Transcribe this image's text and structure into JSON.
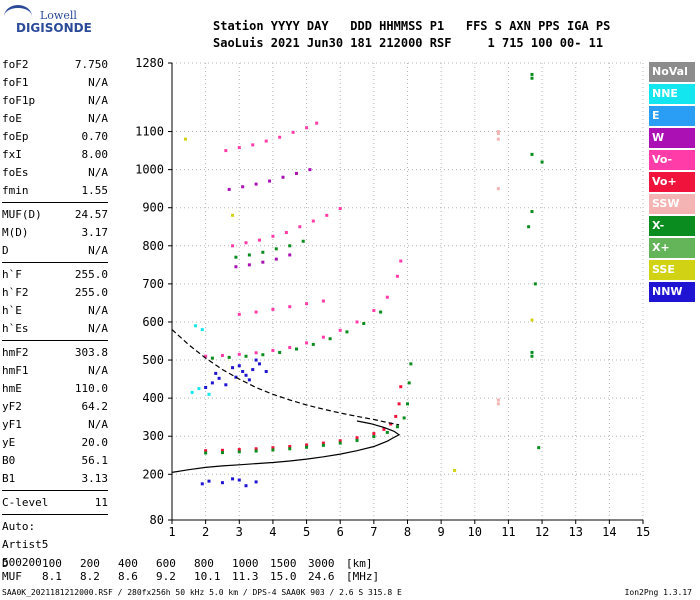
{
  "logo": {
    "line1": "Lowell",
    "line2": "DIGISONDE"
  },
  "header": {
    "line1": "Station YYYY DAY   DDD HHMMSS P1   FFS S AXN PPS IGA PS",
    "line2": "SaoLuis 2021 Jun30 181 212000 RSF     1 715 100 00- 11"
  },
  "params_groups": [
    [
      {
        "name": "foF2",
        "value": "7.750"
      },
      {
        "name": "foF1",
        "value": "N/A"
      },
      {
        "name": "foF1p",
        "value": "N/A"
      },
      {
        "name": "foE",
        "value": "N/A"
      },
      {
        "name": "foEp",
        "value": "0.70"
      },
      {
        "name": "fxI",
        "value": "8.00"
      },
      {
        "name": "foEs",
        "value": "N/A"
      },
      {
        "name": "fmin",
        "value": "1.55"
      }
    ],
    [
      {
        "name": "MUF(D)",
        "value": "24.57"
      },
      {
        "name": "M(D)",
        "value": "3.17"
      },
      {
        "name": "D",
        "value": "N/A"
      }
    ],
    [
      {
        "name": "h`F",
        "value": "255.0"
      },
      {
        "name": "h`F2",
        "value": "255.0"
      },
      {
        "name": "h`E",
        "value": "N/A"
      },
      {
        "name": "h`Es",
        "value": "N/A"
      }
    ],
    [
      {
        "name": "hmF2",
        "value": "303.8"
      },
      {
        "name": "hmF1",
        "value": "N/A"
      },
      {
        "name": "hmE",
        "value": "110.0"
      },
      {
        "name": "yF2",
        "value": "64.2"
      },
      {
        "name": "yF1",
        "value": "N/A"
      },
      {
        "name": "yE",
        "value": "20.0"
      },
      {
        "name": "B0",
        "value": "56.1"
      },
      {
        "name": "B1",
        "value": "3.13"
      }
    ],
    [
      {
        "name": "C-level",
        "value": "11"
      }
    ]
  ],
  "auto": {
    "line1": "Auto:",
    "line2": "Artist5",
    "line3": "500200"
  },
  "legend": [
    {
      "label": "NoVal",
      "color": "#8c8c8c"
    },
    {
      "label": "NNE",
      "color": "#14e6f0"
    },
    {
      "label": "E",
      "color": "#2a9df4"
    },
    {
      "label": "W",
      "color": "#aa10b4"
    },
    {
      "label": "Vo-",
      "color": "#ff3ca8"
    },
    {
      "label": "Vo+",
      "color": "#f0143c"
    },
    {
      "label": "SSW",
      "color": "#f4b4b4"
    },
    {
      "label": "X-",
      "color": "#0a8c1e"
    },
    {
      "label": "X+",
      "color": "#64b45a"
    },
    {
      "label": "SSE",
      "color": "#d2d214"
    },
    {
      "label": "NNW",
      "color": "#1e14d2"
    }
  ],
  "muf_table": {
    "d_label": "D",
    "d_values": [
      "100",
      "200",
      "400",
      "600",
      "800",
      "1000",
      "1500",
      "3000"
    ],
    "d_unit": "[km]",
    "muf_label": "MUF",
    "muf_values": [
      "8.1",
      "8.2",
      "8.6",
      "9.2",
      "10.1",
      "11.3",
      "15.0",
      "24.6"
    ],
    "muf_unit": "[MHz]"
  },
  "footer": {
    "left": "SAA0K_2021181212000.RSF / 280fx256h 50 kHz 5.0 km / DPS-4 SAA0K 903 / 2.6 S 315.8 E",
    "right": "Ion2Png 1.3.17"
  },
  "chart_data": {
    "type": "scatter",
    "xlim": [
      1,
      15
    ],
    "ylim": [
      80,
      1280
    ],
    "x_ticks": [
      1,
      2,
      3,
      4,
      5,
      6,
      7,
      8,
      9,
      10,
      11,
      12,
      13,
      14,
      15
    ],
    "y_ticks": [
      80,
      200,
      300,
      400,
      500,
      600,
      700,
      800,
      900,
      1000,
      1100,
      1280
    ],
    "grid": true,
    "series": [
      {
        "color": "#f0143c",
        "points": [
          [
            2.0,
            262
          ],
          [
            2.5,
            263
          ],
          [
            3.0,
            265
          ],
          [
            3.5,
            267
          ],
          [
            4.0,
            270
          ],
          [
            4.5,
            273
          ],
          [
            5.0,
            277
          ],
          [
            5.5,
            282
          ],
          [
            6.0,
            288
          ],
          [
            6.5,
            296
          ],
          [
            7.0,
            307
          ],
          [
            7.3,
            318
          ],
          [
            7.5,
            332
          ],
          [
            7.65,
            352
          ],
          [
            7.75,
            385
          ],
          [
            7.8,
            430
          ]
        ]
      },
      {
        "color": "#0a8c1e",
        "points": [
          [
            2.0,
            256
          ],
          [
            2.5,
            257
          ],
          [
            3.0,
            259
          ],
          [
            3.5,
            261
          ],
          [
            4.0,
            264
          ],
          [
            4.5,
            267
          ],
          [
            5.0,
            271
          ],
          [
            5.5,
            276
          ],
          [
            6.0,
            282
          ],
          [
            6.5,
            289
          ],
          [
            7.0,
            299
          ],
          [
            7.4,
            310
          ],
          [
            7.7,
            325
          ],
          [
            7.9,
            348
          ],
          [
            8.0,
            385
          ],
          [
            8.05,
            440
          ],
          [
            8.1,
            490
          ]
        ]
      },
      {
        "color": "#ff3ca8",
        "points": [
          [
            2.0,
            510
          ],
          [
            2.5,
            512
          ],
          [
            3.0,
            515
          ],
          [
            3.5,
            519
          ],
          [
            4.0,
            525
          ],
          [
            4.5,
            533
          ],
          [
            5.0,
            545
          ],
          [
            5.5,
            560
          ],
          [
            6.0,
            578
          ],
          [
            6.5,
            600
          ],
          [
            7.0,
            630
          ],
          [
            7.4,
            665
          ],
          [
            7.7,
            720
          ],
          [
            7.8,
            760
          ]
        ]
      },
      {
        "color": "#0a8c1e",
        "points": [
          [
            2.2,
            505
          ],
          [
            2.7,
            507
          ],
          [
            3.2,
            510
          ],
          [
            3.7,
            514
          ],
          [
            4.2,
            520
          ],
          [
            4.7,
            529
          ],
          [
            5.2,
            541
          ],
          [
            5.7,
            556
          ],
          [
            6.2,
            574
          ],
          [
            6.7,
            596
          ],
          [
            7.2,
            626
          ]
        ]
      },
      {
        "color": "#ff3ca8",
        "points": [
          [
            2.8,
            800
          ],
          [
            3.2,
            808
          ],
          [
            3.6,
            815
          ],
          [
            4.0,
            825
          ],
          [
            4.4,
            835
          ],
          [
            4.8,
            850
          ],
          [
            5.2,
            865
          ],
          [
            5.6,
            880
          ],
          [
            6.0,
            898
          ]
        ]
      },
      {
        "color": "#0a8c1e",
        "points": [
          [
            2.9,
            770
          ],
          [
            3.3,
            776
          ],
          [
            3.7,
            783
          ],
          [
            4.1,
            792
          ],
          [
            4.5,
            800
          ],
          [
            4.9,
            812
          ]
        ]
      },
      {
        "color": "#aa10b4",
        "points": [
          [
            2.9,
            745
          ],
          [
            3.3,
            750
          ],
          [
            3.7,
            757
          ],
          [
            4.1,
            765
          ],
          [
            4.5,
            776
          ]
        ]
      },
      {
        "color": "#ff3ca8",
        "points": [
          [
            2.6,
            1050
          ],
          [
            3.0,
            1058
          ],
          [
            3.4,
            1065
          ],
          [
            3.8,
            1075
          ],
          [
            4.2,
            1085
          ],
          [
            4.6,
            1098
          ],
          [
            5.0,
            1110
          ],
          [
            5.3,
            1122
          ]
        ]
      },
      {
        "color": "#ff3ca8",
        "points": [
          [
            3.0,
            620
          ],
          [
            3.5,
            626
          ],
          [
            4.0,
            633
          ],
          [
            4.5,
            640
          ],
          [
            5.0,
            648
          ],
          [
            5.5,
            655
          ]
        ]
      },
      {
        "color": "#aa10b4",
        "points": [
          [
            2.7,
            948
          ],
          [
            3.1,
            955
          ],
          [
            3.5,
            962
          ],
          [
            3.9,
            970
          ],
          [
            4.3,
            980
          ],
          [
            4.7,
            990
          ],
          [
            5.1,
            1000
          ]
        ]
      },
      {
        "color": "#1e14d2",
        "points": [
          [
            2.8,
            480
          ],
          [
            3.0,
            485
          ],
          [
            3.2,
            460
          ],
          [
            3.4,
            475
          ],
          [
            3.6,
            490
          ],
          [
            3.8,
            470
          ],
          [
            2.9,
            455
          ],
          [
            3.3,
            448
          ],
          [
            3.5,
            500
          ],
          [
            3.1,
            470
          ]
        ]
      },
      {
        "color": "#1e14d2",
        "points": [
          [
            2.0,
            428
          ],
          [
            2.2,
            440
          ],
          [
            2.4,
            452
          ],
          [
            2.6,
            435
          ],
          [
            2.3,
            465
          ]
        ]
      },
      {
        "color": "#1e14d2",
        "points": [
          [
            1.9,
            175
          ],
          [
            2.1,
            182
          ],
          [
            2.5,
            178
          ],
          [
            3.0,
            185
          ],
          [
            3.2,
            170
          ],
          [
            3.5,
            180
          ],
          [
            2.8,
            188
          ]
        ]
      },
      {
        "color": "#14e6f0",
        "points": [
          [
            1.7,
            590
          ],
          [
            1.9,
            580
          ],
          [
            1.8,
            425
          ],
          [
            2.1,
            410
          ],
          [
            1.6,
            415
          ]
        ]
      },
      {
        "color": "#f4b4b4",
        "points": [
          [
            10.7,
            1080
          ],
          [
            10.7,
            1095
          ],
          [
            10.7,
            1100
          ],
          [
            10.7,
            395
          ],
          [
            10.7,
            385
          ],
          [
            10.7,
            950
          ]
        ]
      },
      {
        "color": "#0a8c1e",
        "points": [
          [
            11.7,
            1250
          ],
          [
            11.7,
            1240
          ],
          [
            11.7,
            1040
          ],
          [
            11.7,
            520
          ],
          [
            11.7,
            510
          ],
          [
            11.7,
            890
          ],
          [
            11.8,
            700
          ],
          [
            11.6,
            850
          ],
          [
            12.0,
            1020
          ],
          [
            11.9,
            270
          ]
        ]
      },
      {
        "color": "#d2d214",
        "points": [
          [
            9.4,
            210
          ],
          [
            11.7,
            605
          ],
          [
            2.8,
            880
          ],
          [
            1.4,
            1080
          ]
        ]
      }
    ],
    "curves": [
      {
        "style": "solid",
        "points": [
          [
            1.0,
            205
          ],
          [
            1.5,
            212
          ],
          [
            2.0,
            218
          ],
          [
            2.5,
            222
          ],
          [
            3.0,
            225
          ],
          [
            3.5,
            228
          ],
          [
            4.0,
            231
          ],
          [
            4.5,
            235
          ],
          [
            5.0,
            240
          ],
          [
            5.5,
            246
          ],
          [
            6.0,
            253
          ],
          [
            6.5,
            262
          ],
          [
            7.0,
            273
          ],
          [
            7.4,
            287
          ],
          [
            7.6,
            297
          ],
          [
            7.75,
            303.8
          ],
          [
            7.6,
            313
          ],
          [
            7.3,
            323
          ],
          [
            6.9,
            333
          ],
          [
            6.5,
            340
          ]
        ]
      },
      {
        "style": "dashed",
        "points": [
          [
            1.0,
            580
          ],
          [
            1.5,
            540
          ],
          [
            2.0,
            505
          ],
          [
            2.5,
            475
          ],
          [
            3.0,
            450
          ],
          [
            3.5,
            428
          ],
          [
            4.0,
            410
          ],
          [
            4.5,
            395
          ],
          [
            5.0,
            382
          ],
          [
            5.5,
            371
          ],
          [
            6.0,
            361
          ],
          [
            6.5,
            352
          ],
          [
            7.0,
            344
          ],
          [
            7.4,
            336
          ],
          [
            7.75,
            330
          ]
        ]
      }
    ]
  }
}
